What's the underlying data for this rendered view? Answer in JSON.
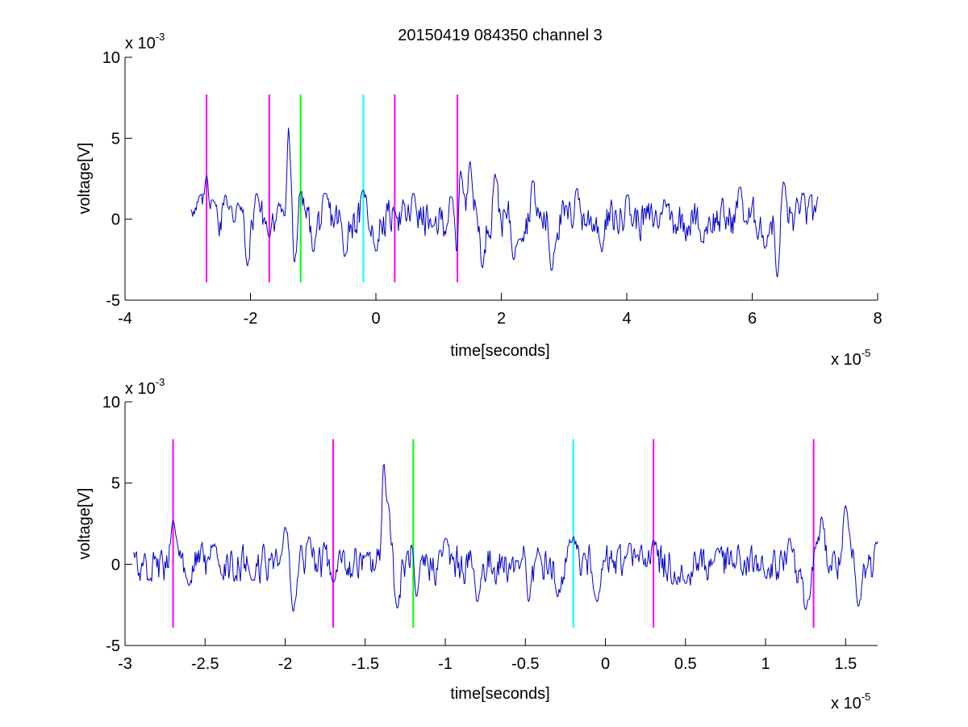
{
  "chart_data": [
    {
      "type": "line",
      "title": "20150419 084350 channel 3",
      "xlabel": "time[seconds]",
      "ylabel": "voltage[V]",
      "x_exponent_label": "x 10",
      "x_exponent": "-5",
      "y_exponent_label": "x 10",
      "y_exponent": "-3",
      "xlim": [
        -4,
        8
      ],
      "ylim": [
        -5,
        10
      ],
      "xticks": [
        "-4",
        "-2",
        "0",
        "2",
        "4",
        "6",
        "8"
      ],
      "xtick_values": [
        -4,
        -2,
        0,
        2,
        4,
        6,
        8
      ],
      "yticks": [
        "-5",
        "0",
        "5",
        "10"
      ],
      "ytick_values": [
        -5,
        0,
        5,
        10
      ],
      "grid": false,
      "signal": {
        "color": "#0000cc",
        "x_range": [
          -2.95,
          7.05
        ],
        "envelope": [
          [
            -2.95,
            0.6
          ],
          [
            -2.8,
            1.5
          ],
          [
            -2.7,
            2.7
          ],
          [
            -2.6,
            1.2
          ],
          [
            -2.4,
            1.5
          ],
          [
            -2.2,
            1.0
          ],
          [
            -2.05,
            -2.9
          ],
          [
            -1.9,
            1.6
          ],
          [
            -1.7,
            -1.1
          ],
          [
            -1.55,
            1.0
          ],
          [
            -1.38,
            7.0
          ],
          [
            -1.35,
            3.7
          ],
          [
            -1.3,
            -2.7
          ],
          [
            -1.2,
            1.7
          ],
          [
            -1.0,
            -2.0
          ],
          [
            -0.8,
            1.6
          ],
          [
            -0.5,
            -2.3
          ],
          [
            -0.2,
            1.8
          ],
          [
            0.0,
            -2.0
          ],
          [
            0.3,
            0.5
          ],
          [
            0.6,
            1.6
          ],
          [
            0.9,
            -0.5
          ],
          [
            1.2,
            1.4
          ],
          [
            1.3,
            -2.7
          ],
          [
            1.35,
            3.0
          ],
          [
            1.5,
            3.6
          ],
          [
            1.7,
            -3.0
          ],
          [
            1.9,
            2.8
          ],
          [
            2.2,
            -2.5
          ],
          [
            2.5,
            2.4
          ],
          [
            2.8,
            -3.2
          ],
          [
            3.2,
            1.9
          ],
          [
            3.6,
            -2.0
          ],
          [
            4.0,
            1.5
          ],
          [
            4.6,
            1.2
          ],
          [
            5.2,
            -1.4
          ],
          [
            5.8,
            2.0
          ],
          [
            6.2,
            -1.8
          ],
          [
            6.4,
            -3.6
          ],
          [
            6.5,
            2.3
          ],
          [
            6.8,
            1.6
          ],
          [
            7.05,
            1.4
          ]
        ]
      },
      "markers": [
        {
          "x": -2.7,
          "color": "#ff00ff"
        },
        {
          "x": -1.7,
          "color": "#ff00ff"
        },
        {
          "x": -1.2,
          "color": "#00ff00"
        },
        {
          "x": -0.2,
          "color": "#00ffff"
        },
        {
          "x": 0.3,
          "color": "#ff00ff"
        },
        {
          "x": 1.3,
          "color": "#ff00ff"
        }
      ],
      "marker_y_range": [
        -3.9,
        7.7
      ]
    },
    {
      "type": "line",
      "xlabel": "time[seconds]",
      "ylabel": "voltage[V]",
      "x_exponent_label": "x 10",
      "x_exponent": "-5",
      "y_exponent_label": "x 10",
      "y_exponent": "-3",
      "xlim": [
        -3,
        1.7
      ],
      "ylim": [
        -5,
        10
      ],
      "xticks": [
        "-3",
        "-2.5",
        "-2",
        "-1.5",
        "-1",
        "-0.5",
        "0",
        "0.5",
        "1",
        "1.5"
      ],
      "xtick_values": [
        -3,
        -2.5,
        -2,
        -1.5,
        -1,
        -0.5,
        0,
        0.5,
        1,
        1.5
      ],
      "yticks": [
        "-5",
        "0",
        "5",
        "10"
      ],
      "ytick_values": [
        -5,
        0,
        5,
        10
      ],
      "grid": false,
      "signal": {
        "color": "#0000cc",
        "x_range": [
          -2.95,
          1.7
        ],
        "envelope": [
          [
            -2.95,
            0.7
          ],
          [
            -2.85,
            -1.0
          ],
          [
            -2.7,
            2.7
          ],
          [
            -2.6,
            -1.3
          ],
          [
            -2.45,
            1.2
          ],
          [
            -2.2,
            -1.0
          ],
          [
            -2.0,
            2.3
          ],
          [
            -1.95,
            -2.9
          ],
          [
            -1.85,
            1.7
          ],
          [
            -1.7,
            -1.1
          ],
          [
            -1.5,
            0.5
          ],
          [
            -1.38,
            7.0
          ],
          [
            -1.36,
            3.8
          ],
          [
            -1.3,
            -2.7
          ],
          [
            -1.2,
            1.6
          ],
          [
            -1.18,
            -2.0
          ],
          [
            -1.0,
            1.6
          ],
          [
            -0.8,
            -2.3
          ],
          [
            -0.5,
            1.5
          ],
          [
            -0.48,
            -2.3
          ],
          [
            -0.3,
            -2.0
          ],
          [
            -0.2,
            1.7
          ],
          [
            -0.05,
            -2.3
          ],
          [
            0.15,
            1.3
          ],
          [
            0.3,
            1.5
          ],
          [
            0.5,
            -1.2
          ],
          [
            0.7,
            1.0
          ],
          [
            1.0,
            -0.8
          ],
          [
            1.15,
            1.6
          ],
          [
            1.25,
            -2.8
          ],
          [
            1.35,
            2.9
          ],
          [
            1.5,
            3.6
          ],
          [
            1.58,
            -2.6
          ],
          [
            1.7,
            1.4
          ]
        ]
      },
      "markers": [
        {
          "x": -2.7,
          "color": "#ff00ff"
        },
        {
          "x": -1.7,
          "color": "#ff00ff"
        },
        {
          "x": -1.2,
          "color": "#00ff00"
        },
        {
          "x": -0.2,
          "color": "#00ffff"
        },
        {
          "x": 0.3,
          "color": "#ff00ff"
        },
        {
          "x": 1.3,
          "color": "#ff00ff"
        }
      ],
      "marker_y_range": [
        -3.9,
        7.7
      ]
    }
  ]
}
